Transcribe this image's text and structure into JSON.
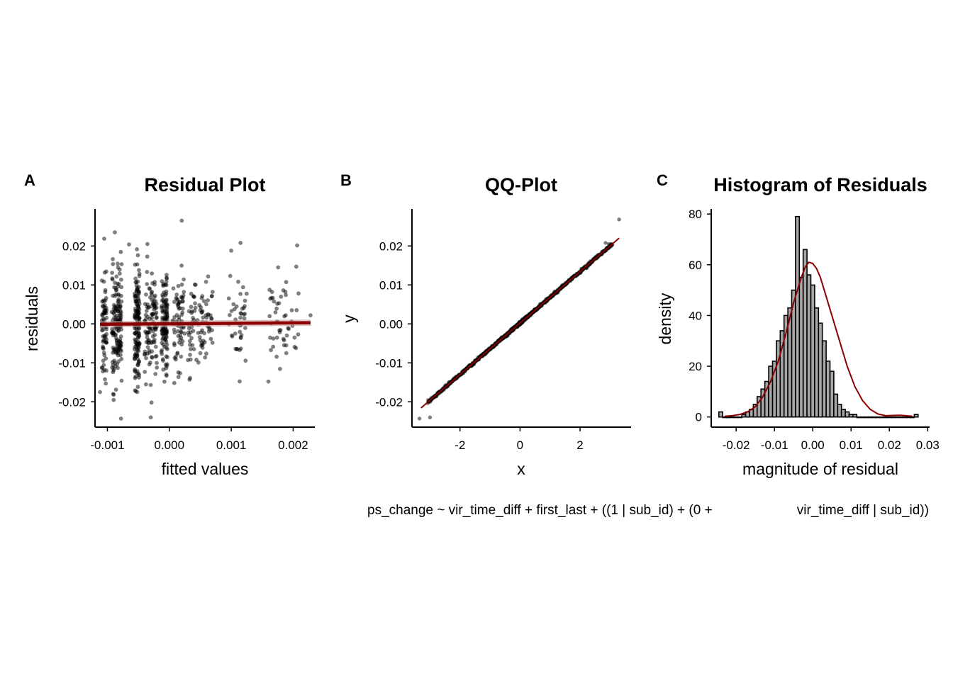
{
  "chart_data": [
    {
      "type": "scatter",
      "panel": "A",
      "title": "Residual Plot",
      "xlabel": "fitted values",
      "ylabel": "residuals",
      "xlim": [
        -0.0012,
        0.00235
      ],
      "ylim": [
        -0.0265,
        0.0295
      ],
      "xticks": [
        -0.001,
        0.0,
        0.001,
        0.002
      ],
      "xtick_labels": [
        "-0.001",
        "0.000",
        "0.001",
        "0.002"
      ],
      "yticks": [
        -0.02,
        -0.01,
        0.0,
        0.01,
        0.02
      ],
      "ytick_labels": [
        "-0.02",
        "-0.01",
        "0.00",
        "0.01",
        "0.02"
      ],
      "point_color": "#000000",
      "point_opacity": 0.5,
      "fit_line": {
        "x": [
          -0.00112,
          0.00228
        ],
        "y": [
          -0.0001,
          0.0003
        ],
        "color": "#8B0000"
      },
      "point_clusters": [
        {
          "x_center": -0.00105,
          "x_spread": 4e-05,
          "n": 70,
          "sd": 0.0075
        },
        {
          "x_center": -0.00085,
          "x_spread": 8e-05,
          "n": 160,
          "sd": 0.0075
        },
        {
          "x_center": -0.00052,
          "x_spread": 4e-05,
          "n": 150,
          "sd": 0.0072
        },
        {
          "x_center": -0.0003,
          "x_spread": 0.0001,
          "n": 110,
          "sd": 0.0065
        },
        {
          "x_center": -8e-05,
          "x_spread": 5e-05,
          "n": 110,
          "sd": 0.0065
        },
        {
          "x_center": 0.00015,
          "x_spread": 0.0001,
          "n": 70,
          "sd": 0.0062
        },
        {
          "x_center": 0.0005,
          "x_spread": 0.0002,
          "n": 90,
          "sd": 0.0058
        },
        {
          "x_center": 0.0011,
          "x_spread": 0.00015,
          "n": 40,
          "sd": 0.0062
        },
        {
          "x_center": 0.00185,
          "x_spread": 0.00025,
          "n": 50,
          "sd": 0.0062
        }
      ],
      "outliers": [
        {
          "x": 0.0002,
          "y": 0.0265
        },
        {
          "x": 0.00115,
          "y": 0.0208
        },
        {
          "x": -0.00065,
          "y": 0.0204
        },
        {
          "x": 0.001,
          "y": 0.0188
        },
        {
          "x": -0.00078,
          "y": -0.0243
        },
        {
          "x": -0.0003,
          "y": -0.024
        },
        {
          "x": 0.00205,
          "y": 0.0147
        },
        {
          "x": 0.0016,
          "y": -0.0148
        },
        {
          "x": -0.00112,
          "y": -0.0175
        },
        {
          "x": 0.00228,
          "y": 0.0022
        }
      ]
    },
    {
      "type": "scatter",
      "panel": "B",
      "title": "QQ-Plot",
      "xlabel": "x",
      "ylabel": "y",
      "xlim": [
        -3.6,
        3.7
      ],
      "ylim": [
        -0.0265,
        0.0295
      ],
      "xticks": [
        -2,
        0,
        2
      ],
      "xtick_labels": [
        "-2",
        "0",
        "2"
      ],
      "yticks": [
        -0.02,
        -0.01,
        0.0,
        0.01,
        0.02
      ],
      "ytick_labels": [
        "-0.02",
        "-0.01",
        "0.00",
        "0.01",
        "0.02"
      ],
      "point_color": "#000000",
      "reference_line": {
        "x": [
          -3.3,
          3.3
        ],
        "y": [
          -0.0216,
          0.022
        ],
        "color": "#8B0000"
      },
      "sample": {
        "n": 850,
        "x_range": [
          -3.35,
          3.35
        ],
        "intercept": 0.0002,
        "slope": 0.0066
      },
      "tail_points": [
        {
          "x": -3.35,
          "y": -0.0243
        },
        {
          "x": -3.0,
          "y": -0.024
        },
        {
          "x": 2.85,
          "y": 0.0208
        },
        {
          "x": 2.95,
          "y": 0.0205
        },
        {
          "x": 3.3,
          "y": 0.0268
        }
      ]
    },
    {
      "type": "histogram",
      "panel": "C",
      "title": "Histogram of Residuals",
      "xlabel": "magnitude of residual",
      "ylabel": "density",
      "xlim": [
        -0.0265,
        0.0305
      ],
      "ylim": [
        -4,
        82
      ],
      "xticks": [
        -0.02,
        -0.01,
        0.0,
        0.01,
        0.02,
        0.03
      ],
      "xtick_labels": [
        "-0.02",
        "-0.01",
        "0.00",
        "0.01",
        "0.02",
        "0.03"
      ],
      "yticks": [
        0,
        20,
        40,
        60,
        80
      ],
      "ytick_labels": [
        "0",
        "20",
        "40",
        "60",
        "80"
      ],
      "bar_fill": "#a6a6a6",
      "bar_stroke": "#000000",
      "density_color": "#8B0000",
      "bin_start": -0.0245,
      "bin_width": 0.001,
      "bin_values": [
        2,
        0,
        0,
        0,
        0,
        0,
        1,
        2,
        3,
        5,
        8,
        11,
        14,
        20,
        22,
        30,
        34,
        40,
        43,
        50,
        79,
        55,
        66,
        56,
        52,
        43,
        37,
        30,
        22,
        18,
        9,
        5,
        3,
        2,
        1,
        1,
        0,
        0,
        0,
        0,
        0,
        0,
        0,
        0,
        0,
        0,
        0,
        0,
        0,
        0,
        0,
        1
      ],
      "density_curve": {
        "x": [
          -0.023,
          -0.021,
          -0.019,
          -0.017,
          -0.015,
          -0.013,
          -0.011,
          -0.009,
          -0.007,
          -0.005,
          -0.003,
          -0.002,
          -0.001,
          0.0,
          0.001,
          0.002,
          0.003,
          0.005,
          0.007,
          0.009,
          0.011,
          0.013,
          0.015,
          0.017,
          0.019,
          0.021,
          0.023,
          0.025,
          0.026
        ],
        "y": [
          0.3,
          0.5,
          1.0,
          2.0,
          4.0,
          8.0,
          14.0,
          22.0,
          33.0,
          45.0,
          55.0,
          59.0,
          61.0,
          60.5,
          58.5,
          55.0,
          50.0,
          40.0,
          30.0,
          20.0,
          12.0,
          6.5,
          3.0,
          1.2,
          0.5,
          0.6,
          0.7,
          0.4,
          0.3
        ]
      }
    }
  ],
  "panels": [
    {
      "letter": "A",
      "title": "Residual Plot"
    },
    {
      "letter": "B",
      "title": "QQ-Plot"
    },
    {
      "letter": "C",
      "title": "Histogram of Residuals"
    }
  ],
  "caption": {
    "left": "ps_change ~ vir_time_diff + first_last + ((1 | sub_id) + (0 +",
    "right": "vir_time_diff | sub_id))"
  }
}
